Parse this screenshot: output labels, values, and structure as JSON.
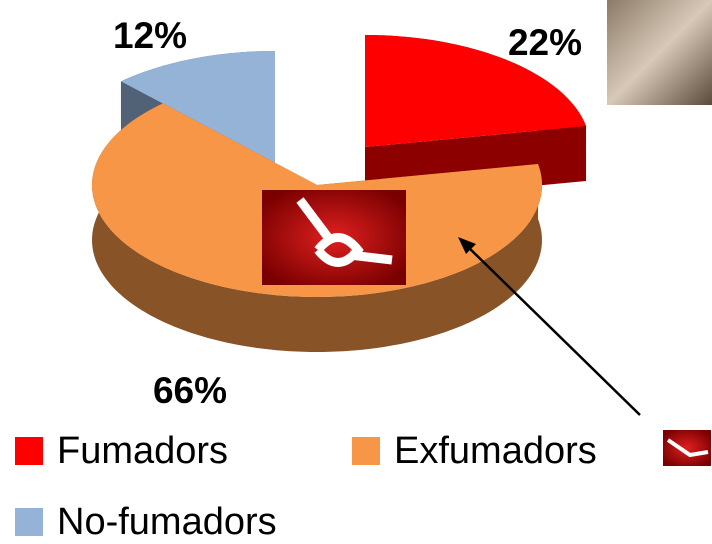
{
  "chart_data": {
    "type": "pie",
    "categories": [
      "Fumadors",
      "Exfumadors",
      "No-fumadors"
    ],
    "values": [
      22,
      66,
      12
    ],
    "value_labels": [
      "22%",
      "66%",
      "12%"
    ],
    "colors": [
      "#ff0000",
      "#f79646",
      "#95b3d7"
    ],
    "legend": "bottom"
  }
}
